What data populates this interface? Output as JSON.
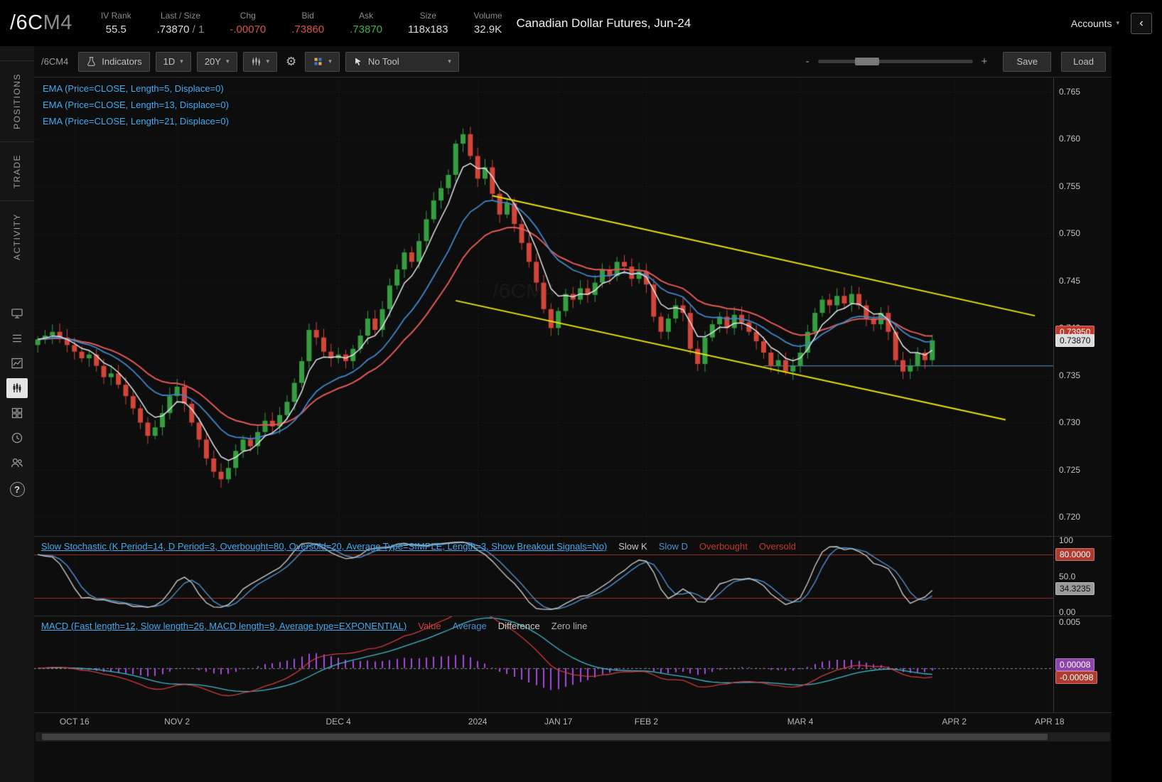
{
  "header": {
    "symbol": "/6C",
    "symbol_suffix": "M4",
    "stats": [
      {
        "label": "IV Rank",
        "value": "55.5",
        "color": "#dcdcdc"
      },
      {
        "label": "Last / Size",
        "value": ".73870",
        "suffix": " / 1",
        "color": "#dcdcdc"
      },
      {
        "label": "Chg",
        "value": "-.00070",
        "color": "#d9534a"
      },
      {
        "label": "Bid",
        "value": ".73860",
        "color": "#d9534a"
      },
      {
        "label": "Ask",
        "value": ".73870",
        "color": "#3fae4a"
      },
      {
        "label": "Size",
        "value": "118x183",
        "color": "#dcdcdc"
      },
      {
        "label": "Volume",
        "value": "32.9K",
        "color": "#dcdcdc"
      }
    ],
    "title": "Canadian Dollar Futures, Jun-24",
    "accounts_label": "Accounts",
    "back_glyph": "‹"
  },
  "sidebar": {
    "tabs": [
      {
        "label": "POSITIONS"
      },
      {
        "label": "TRADE"
      },
      {
        "label": "ACTIVITY"
      }
    ],
    "help_label": "?"
  },
  "toolbar": {
    "symbol_label": "/6CM4",
    "indicators_label": "Indicators",
    "timeframe": "1D",
    "range": "20Y",
    "tool_label": "No Tool",
    "zoom_minus": "-",
    "zoom_plus": "+",
    "save_label": "Save",
    "load_label": "Load"
  },
  "studies": {
    "label_color": "#41aaf0",
    "ema_labels": [
      "EMA (Price=CLOSE, Length=5, Displace=0)",
      "EMA (Price=CLOSE, Length=13, Displace=0)",
      "EMA (Price=CLOSE, Length=21, Displace=0)"
    ],
    "stoch_label": "Slow Stochastic (K Period=14, D Period=3, Overbought=80, Oversold=20, Average Type=SIMPLE, Length=3, Show Breakout Signals=No)",
    "stoch_legend": [
      {
        "text": "Slow K",
        "color": "#c8c8c8"
      },
      {
        "text": "Slow D",
        "color": "#4f8fd0"
      },
      {
        "text": "Overbought",
        "color": "#c0392b"
      },
      {
        "text": "Oversold",
        "color": "#c0392b"
      }
    ],
    "macd_label": "MACD (Fast length=12, Slow length=26, MACD length=9, Average type=EXPONENTIAL)",
    "macd_legend": [
      {
        "text": "Value",
        "color": "#cc4444"
      },
      {
        "text": "Average",
        "color": "#4f8fd0"
      },
      {
        "text": "Difference",
        "color": "#cccccc"
      },
      {
        "text": "Zero line",
        "color": "#b0b0b0"
      }
    ]
  },
  "chart_data": {
    "type": "candlestick",
    "symbol": "/6CM4",
    "watermark": "/6CM4",
    "total_slots": 139,
    "closes": [
      0.7388,
      0.7392,
      0.7396,
      0.739,
      0.7382,
      0.7375,
      0.7368,
      0.7372,
      0.736,
      0.7348,
      0.7352,
      0.734,
      0.7328,
      0.7315,
      0.73,
      0.7286,
      0.7295,
      0.731,
      0.7328,
      0.7338,
      0.732,
      0.73,
      0.7282,
      0.7262,
      0.7248,
      0.724,
      0.7252,
      0.727,
      0.7282,
      0.7275,
      0.729,
      0.7302,
      0.7296,
      0.7308,
      0.7322,
      0.7342,
      0.7365,
      0.7398,
      0.739,
      0.7375,
      0.7368,
      0.7372,
      0.7365,
      0.7378,
      0.7392,
      0.741,
      0.7398,
      0.742,
      0.7445,
      0.7462,
      0.748,
      0.747,
      0.7492,
      0.7515,
      0.7535,
      0.7548,
      0.7562,
      0.7595,
      0.7605,
      0.7582,
      0.7558,
      0.757,
      0.7542,
      0.752,
      0.7532,
      0.751,
      0.749,
      0.747,
      0.7448,
      0.742,
      0.74,
      0.7418,
      0.7436,
      0.743,
      0.7442,
      0.7435,
      0.7448,
      0.7462,
      0.7455,
      0.747,
      0.7465,
      0.7452,
      0.746,
      0.7446,
      0.7412,
      0.7396,
      0.741,
      0.7424,
      0.7416,
      0.7378,
      0.7362,
      0.739,
      0.7404,
      0.7412,
      0.74,
      0.7414,
      0.7406,
      0.7396,
      0.7386,
      0.7374,
      0.736,
      0.7366,
      0.7354,
      0.736,
      0.7374,
      0.7396,
      0.7416,
      0.743,
      0.7424,
      0.7434,
      0.7426,
      0.7436,
      0.7424,
      0.741,
      0.7404,
      0.7416,
      0.7396,
      0.7366,
      0.7354,
      0.736,
      0.7374,
      0.7366,
      0.7387
    ],
    "price_axis": {
      "min": 0.718,
      "max": 0.7665,
      "ticks": [
        {
          "label": "0.765",
          "value": 0.765
        },
        {
          "label": "0.760",
          "value": 0.76
        },
        {
          "label": "0.755",
          "value": 0.755
        },
        {
          "label": "0.750",
          "value": 0.75
        },
        {
          "label": "0.745",
          "value": 0.745
        },
        {
          "label": "0.740",
          "value": 0.74
        },
        {
          "label": "0.735",
          "value": 0.735
        },
        {
          "label": "0.730",
          "value": 0.73
        },
        {
          "label": "0.725",
          "value": 0.725
        },
        {
          "label": "0.720",
          "value": 0.72
        }
      ]
    },
    "time_axis": [
      {
        "label": "OCT 16",
        "i": 5
      },
      {
        "label": "NOV 2",
        "i": 19
      },
      {
        "label": "DEC 4",
        "i": 41
      },
      {
        "label": "2024",
        "i": 60
      },
      {
        "label": "JAN 17",
        "i": 71
      },
      {
        "label": "FEB 2",
        "i": 83
      },
      {
        "label": "MAR 4",
        "i": 104
      },
      {
        "label": "APR 2",
        "i": 125
      },
      {
        "label": "APR 18",
        "i": 138
      }
    ],
    "trendlines": [
      {
        "i1": 62,
        "p1": 0.754,
        "i2": 136,
        "p2": 0.7413
      },
      {
        "i1": 57,
        "p1": 0.7429,
        "i2": 132,
        "p2": 0.7303
      }
    ],
    "hline": {
      "price": 0.736,
      "from": 99
    },
    "badges_main": [
      {
        "text": "0.73950",
        "bg": "#c0392b",
        "fg": "#ffffff",
        "price": 0.7396
      },
      {
        "text": "0.73870",
        "bg": "#dcdcdc",
        "fg": "#111111",
        "price": 0.7387
      }
    ],
    "stoch_axis": {
      "overbought": 80,
      "oversold": 20,
      "ticks": [
        {
          "label": "100",
          "value": 100
        },
        {
          "label": "50.0",
          "value": 50
        },
        {
          "label": "0.00",
          "value": 0
        }
      ],
      "badges": [
        {
          "text": "80.0000",
          "bg": "#b03a2e",
          "fg": "#ffffff",
          "value": 80
        },
        {
          "text": "34.3235",
          "bg": "#9a9a9a",
          "fg": "#111111",
          "value": 33
        }
      ]
    },
    "macd_axis": {
      "min": -0.0048,
      "max": 0.0056,
      "ticks": [
        {
          "label": "0.005",
          "value": 0.005
        }
      ],
      "badges": [
        {
          "text": "0.00008",
          "bg": "#8e44ad",
          "fg": "#ffffff",
          "value": 0.0004
        },
        {
          "text": "-0.00098",
          "bg": "#b03a2e",
          "fg": "#ffffff",
          "value": -0.001
        }
      ]
    },
    "colors": {
      "up": "#359e41",
      "down": "#d24539",
      "ema5": "#e2e6e9",
      "ema13": "#3f87c9",
      "ema21": "#e05a56",
      "trendline": "#e8e400",
      "hline": "#4a7ca3",
      "grid": "rgba(255,255,255,0.10)",
      "stoch_k": "#c8c8c8",
      "stoch_d": "#4f8fd0",
      "stoch_level": "#9c2f27",
      "macd_value": "#cc3b3b",
      "macd_avg": "#3fb9cf",
      "macd_hist": "#a64ae0",
      "zero_line": "#8a8a8a"
    }
  }
}
